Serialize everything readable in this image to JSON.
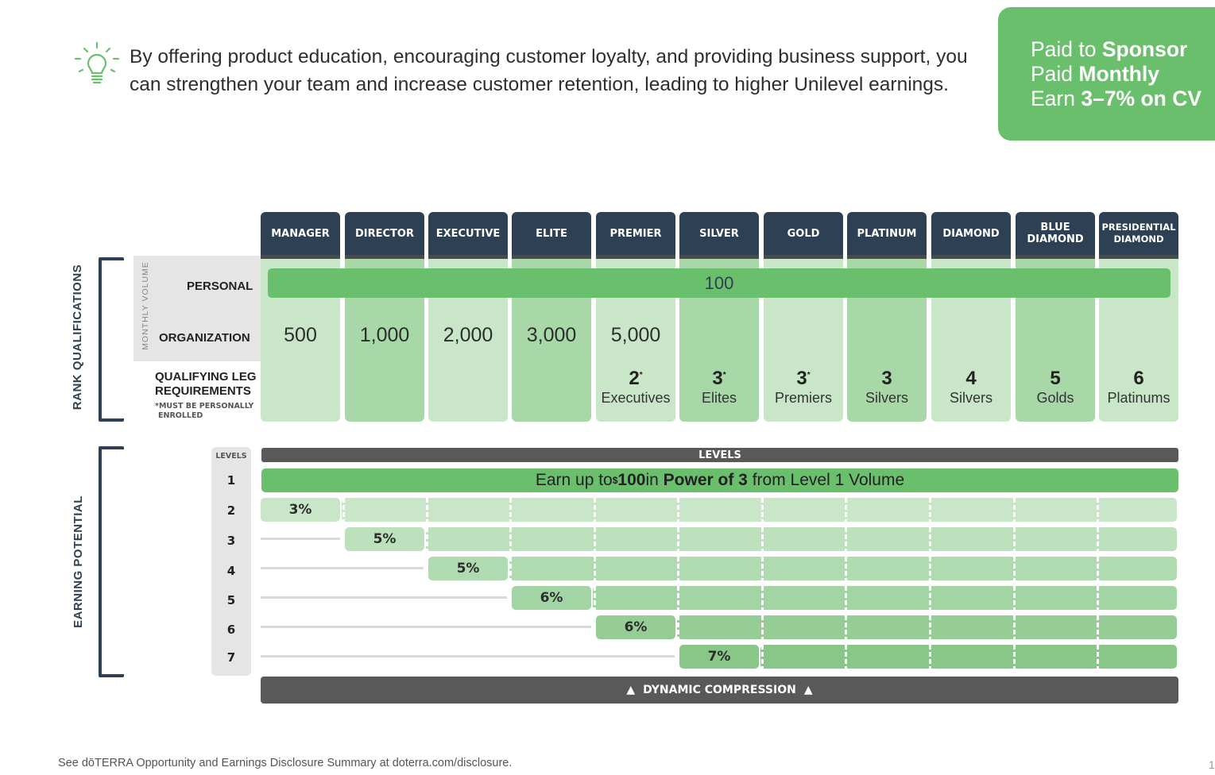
{
  "intro": {
    "text": "By offering product education, encouraging customer loyalty, and providing business support, you can strengthen your team and increase customer retention, leading to higher Unilevel earnings.",
    "icon": "lightbulb-icon"
  },
  "pay_box": {
    "line1_prefix": "Paid to ",
    "line1_bold": "Sponsor",
    "line2_prefix": "Paid ",
    "line2_bold": "Monthly",
    "line3_prefix": "Earn ",
    "line3_bold": "3–7% on CV"
  },
  "ranks": [
    "MANAGER",
    "DIRECTOR",
    "EXECUTIVE",
    "ELITE",
    "PREMIER",
    "SILVER",
    "GOLD",
    "PLATINUM",
    "DIAMOND",
    "BLUE DIAMOND",
    "PRESIDENTIAL DIAMOND"
  ],
  "rank_qualifications": {
    "section_label": "RANK QUALIFICATIONS",
    "monthly_volume_label": "MONTHLY VOLUME",
    "personal_label": "PERSONAL",
    "personal_value": "100",
    "organization_label": "ORGANIZATION",
    "organization_values": [
      "500",
      "1,000",
      "2,000",
      "3,000",
      "5,000"
    ],
    "qualifying_label_1": "QUALIFYING LEG",
    "qualifying_label_2": "REQUIREMENTS",
    "qualifying_note_1": "*MUST BE PERSONALLY",
    "qualifying_note_2": "ENROLLED",
    "legs": [
      {
        "num": "2",
        "star": "*",
        "text": "Executives"
      },
      {
        "num": "3",
        "star": "*",
        "text": "Elites"
      },
      {
        "num": "3",
        "star": "*",
        "text": "Premiers"
      },
      {
        "num": "3",
        "star": "",
        "text": "Silvers"
      },
      {
        "num": "4",
        "star": "",
        "text": "Silvers"
      },
      {
        "num": "5",
        "star": "",
        "text": "Golds"
      },
      {
        "num": "6",
        "star": "",
        "text": "Platinums"
      }
    ]
  },
  "earning_potential": {
    "section_label": "EARNING POTENTIAL",
    "levels_header": "LEVELS",
    "levels_bar": "LEVELS",
    "level_numbers": [
      "1",
      "2",
      "3",
      "4",
      "5",
      "6",
      "7"
    ],
    "level1_prefix": "Earn up to ",
    "level1_sup": "$",
    "level1_amount": "100",
    "level1_mid": " in ",
    "level1_bold": "Power of 3",
    "level1_suffix": " from Level 1 Volume",
    "percentages": [
      "3%",
      "5%",
      "5%",
      "6%",
      "6%",
      "7%"
    ],
    "dynamic_compression": "DYNAMIC COMPRESSION"
  },
  "colors": {
    "navy": "#2e4053",
    "green": "#6abf6d",
    "light_green": "#c9e6c9",
    "mid_green": "#a8d7a8",
    "dark_gray": "#595959"
  },
  "footer": "See dōTERRA Opportunity and Earnings Disclosure Summary at doterra.com/disclosure.",
  "page_number": "1"
}
